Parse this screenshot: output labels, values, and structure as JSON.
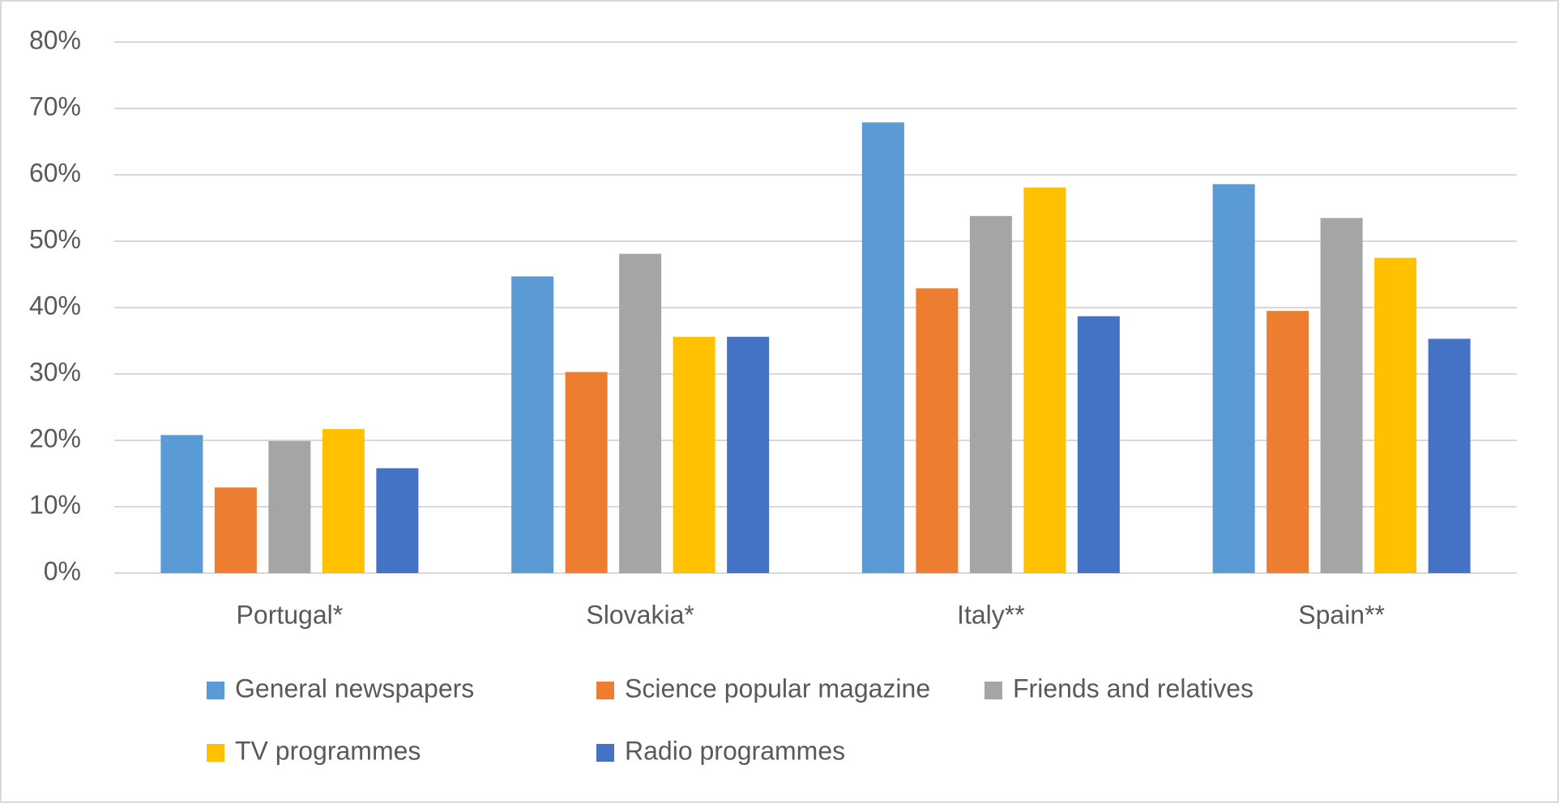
{
  "chart_data": {
    "type": "bar",
    "categories": [
      "Portugal*",
      "Slovakia*",
      "Italy**",
      "Spain**"
    ],
    "series": [
      {
        "name": "General newspapers",
        "color": "#5b9bd5",
        "values": [
          20.8,
          44.7,
          67.9,
          58.6
        ]
      },
      {
        "name": "Science popular magazine",
        "color": "#ed7d31",
        "values": [
          12.9,
          30.3,
          42.9,
          39.5
        ]
      },
      {
        "name": "Friends and relatives",
        "color": "#a5a5a5",
        "values": [
          19.9,
          48.1,
          53.8,
          53.5
        ]
      },
      {
        "name": "TV programmes",
        "color": "#ffc000",
        "values": [
          21.7,
          35.6,
          58.1,
          47.5
        ]
      },
      {
        "name": "Radio programmes",
        "color": "#4472c4",
        "values": [
          15.8,
          35.6,
          38.7,
          35.3
        ]
      }
    ],
    "ylim": [
      0,
      80
    ],
    "yticks": [
      {
        "value": 0,
        "label": "0%"
      },
      {
        "value": 10,
        "label": "10%"
      },
      {
        "value": 20,
        "label": "20%"
      },
      {
        "value": 30,
        "label": "30%"
      },
      {
        "value": 40,
        "label": "40%"
      },
      {
        "value": 50,
        "label": "50%"
      },
      {
        "value": 60,
        "label": "60%"
      },
      {
        "value": 70,
        "label": "70%"
      },
      {
        "value": 80,
        "label": "80%"
      }
    ],
    "grid": true,
    "legend": "bottom"
  }
}
